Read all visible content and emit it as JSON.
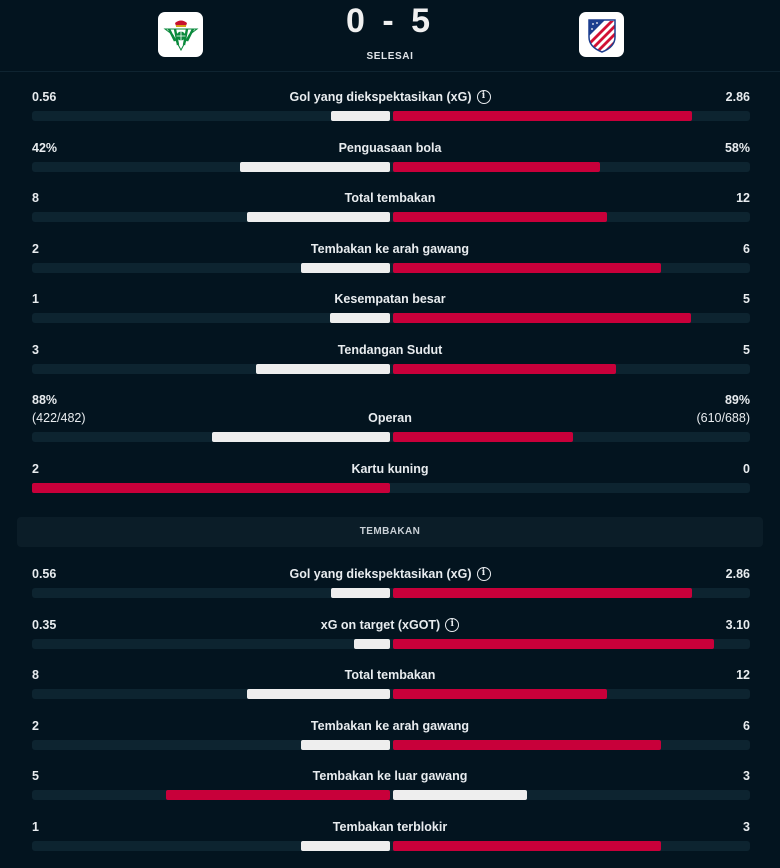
{
  "match": {
    "score": "0 - 5",
    "status": "SELESAI",
    "home_team": "Real Betis",
    "away_team": "Atlético Madrid"
  },
  "colors": {
    "winner": "#c8003a",
    "loser": "#eeeeee",
    "track": "#0d2430"
  },
  "overview": [
    {
      "label": "Gol yang diekspektasikan (xG)",
      "left": "0.56",
      "right": "2.86",
      "info": true
    },
    {
      "label": "Penguasaan bola",
      "left": "42%",
      "right": "58%"
    },
    {
      "label": "Total tembakan",
      "left": "8",
      "right": "12"
    },
    {
      "label": "Tembakan ke arah gawang",
      "left": "2",
      "right": "6"
    },
    {
      "label": "Kesempatan besar",
      "left": "1",
      "right": "5"
    },
    {
      "label": "Tendangan Sudut",
      "left": "3",
      "right": "5"
    },
    {
      "label": "Operan",
      "left": "88%",
      "right": "89%",
      "left_sub": "(422/482)",
      "right_sub": "(610/688)"
    },
    {
      "label": "Kartu kuning",
      "left": "2",
      "right": "0"
    }
  ],
  "shots_section": {
    "title": "TEMBAKAN",
    "rows": [
      {
        "label": "Gol yang diekspektasikan (xG)",
        "left": "0.56",
        "right": "2.86",
        "info": true
      },
      {
        "label": "xG on target (xGOT)",
        "left": "0.35",
        "right": "3.10",
        "info": true
      },
      {
        "label": "Total tembakan",
        "left": "8",
        "right": "12"
      },
      {
        "label": "Tembakan ke arah gawang",
        "left": "2",
        "right": "6"
      },
      {
        "label": "Tembakan ke luar gawang",
        "left": "5",
        "right": "3"
      },
      {
        "label": "Tembakan terblokir",
        "left": "1",
        "right": "3"
      }
    ]
  }
}
